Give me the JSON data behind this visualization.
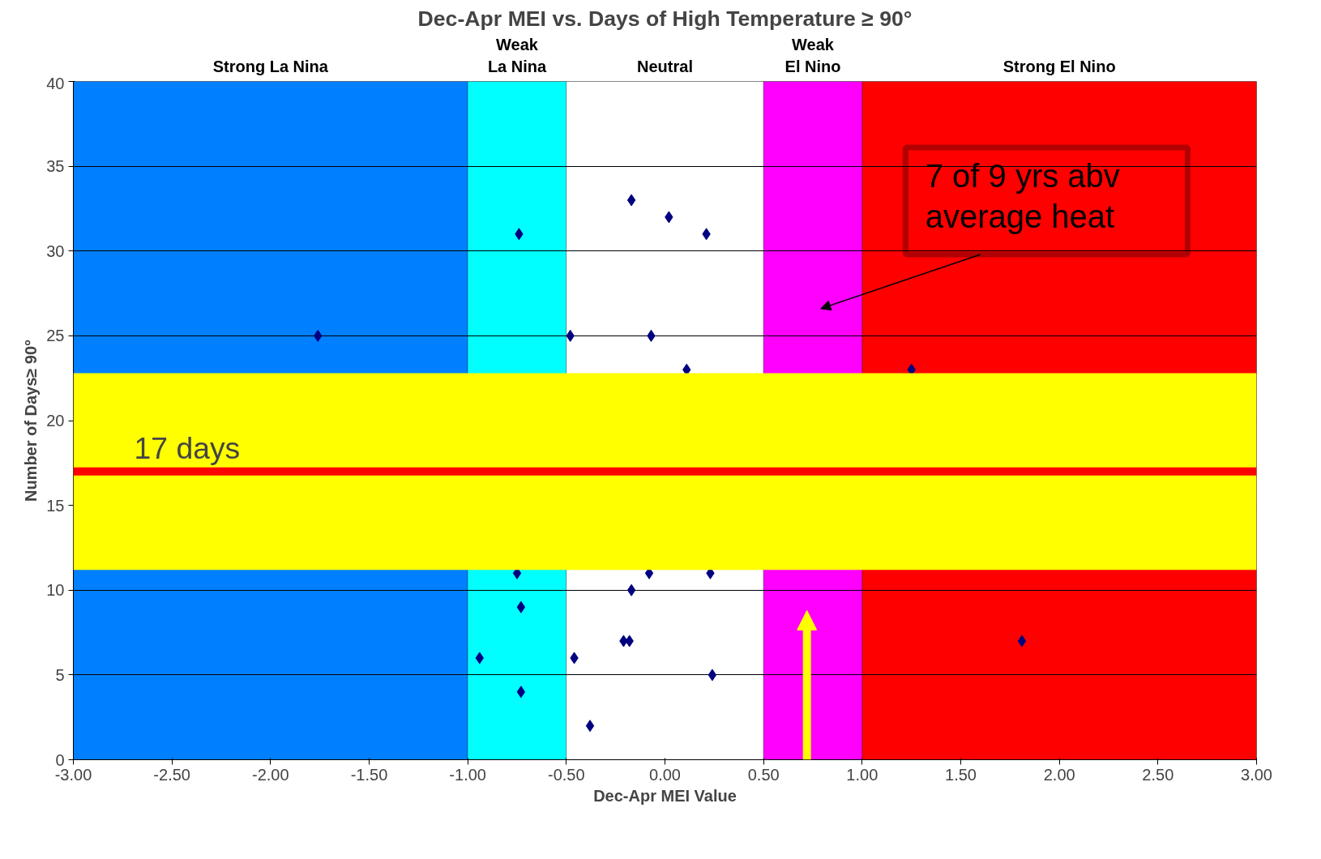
{
  "chart_data": {
    "type": "scatter",
    "title": "Dec-Apr MEI vs. Days of High Temperature ≥ 90°",
    "xlabel": "Dec-Apr MEI Value",
    "ylabel": "Number of Days≥ 90°",
    "x": [
      -1.76,
      -0.74,
      -0.48,
      -0.17,
      0.02,
      0.21,
      -0.07,
      0.11,
      1.25,
      -0.75,
      -0.08,
      0.23,
      -0.17,
      -0.73,
      -0.94,
      -0.46,
      -0.21,
      -0.18,
      0.24,
      -0.73,
      -0.38,
      1.81
    ],
    "series": [
      {
        "color": "#000080",
        "values": [
          25,
          31,
          25,
          33,
          32,
          31,
          25,
          23,
          23,
          11,
          11,
          11,
          10,
          9,
          6,
          6,
          7,
          7,
          5,
          4,
          2,
          7
        ]
      }
    ],
    "marker": "diamond",
    "grid": "y",
    "xlim": [
      -3,
      3
    ],
    "xticks": [
      {
        "value": -3,
        "label": "-3.00"
      },
      {
        "value": -2.5,
        "label": "-2.50"
      },
      {
        "value": -2,
        "label": "-2.00"
      },
      {
        "value": -1.5,
        "label": "-1.50"
      },
      {
        "value": -1,
        "label": "-1.00"
      },
      {
        "value": -0.5,
        "label": "-0.50"
      },
      {
        "value": 0,
        "label": "0.00"
      },
      {
        "value": 0.5,
        "label": "0.50"
      },
      {
        "value": 1,
        "label": "1.00"
      },
      {
        "value": 1.5,
        "label": "1.50"
      },
      {
        "value": 2,
        "label": "2.00"
      },
      {
        "value": 2.5,
        "label": "2.50"
      },
      {
        "value": 3,
        "label": "3.00"
      }
    ],
    "ylim": [
      0,
      40
    ],
    "yticks": [
      0,
      5,
      10,
      15,
      20,
      25,
      30,
      35,
      40
    ],
    "bands": [
      {
        "axis": "x",
        "from": -3,
        "to": -1,
        "label": "Strong La Nina",
        "color": "#0080ff"
      },
      {
        "axis": "x",
        "from": -1,
        "to": -0.5,
        "label": "Weak\nLa Nina",
        "color": "#00ffff"
      },
      {
        "axis": "x",
        "from": -0.5,
        "to": 0.5,
        "label": "Neutral",
        "color": "#ffffff"
      },
      {
        "axis": "x",
        "from": 0.5,
        "to": 1,
        "label": "Weak\nEl Nino",
        "color": "#ff00ff"
      },
      {
        "axis": "x",
        "from": 1,
        "to": 3,
        "label": "Strong El Nino",
        "color": "#ff0000"
      },
      {
        "axis": "y",
        "from": 11.2,
        "to": 22.8,
        "color": "#ffff00"
      }
    ],
    "ref_lines": [
      {
        "axis": "y",
        "value": 17,
        "label": "17 days",
        "color": "#ff0000"
      }
    ],
    "annotations": [
      "7 of 9 yrs abv\naverage heat"
    ]
  }
}
